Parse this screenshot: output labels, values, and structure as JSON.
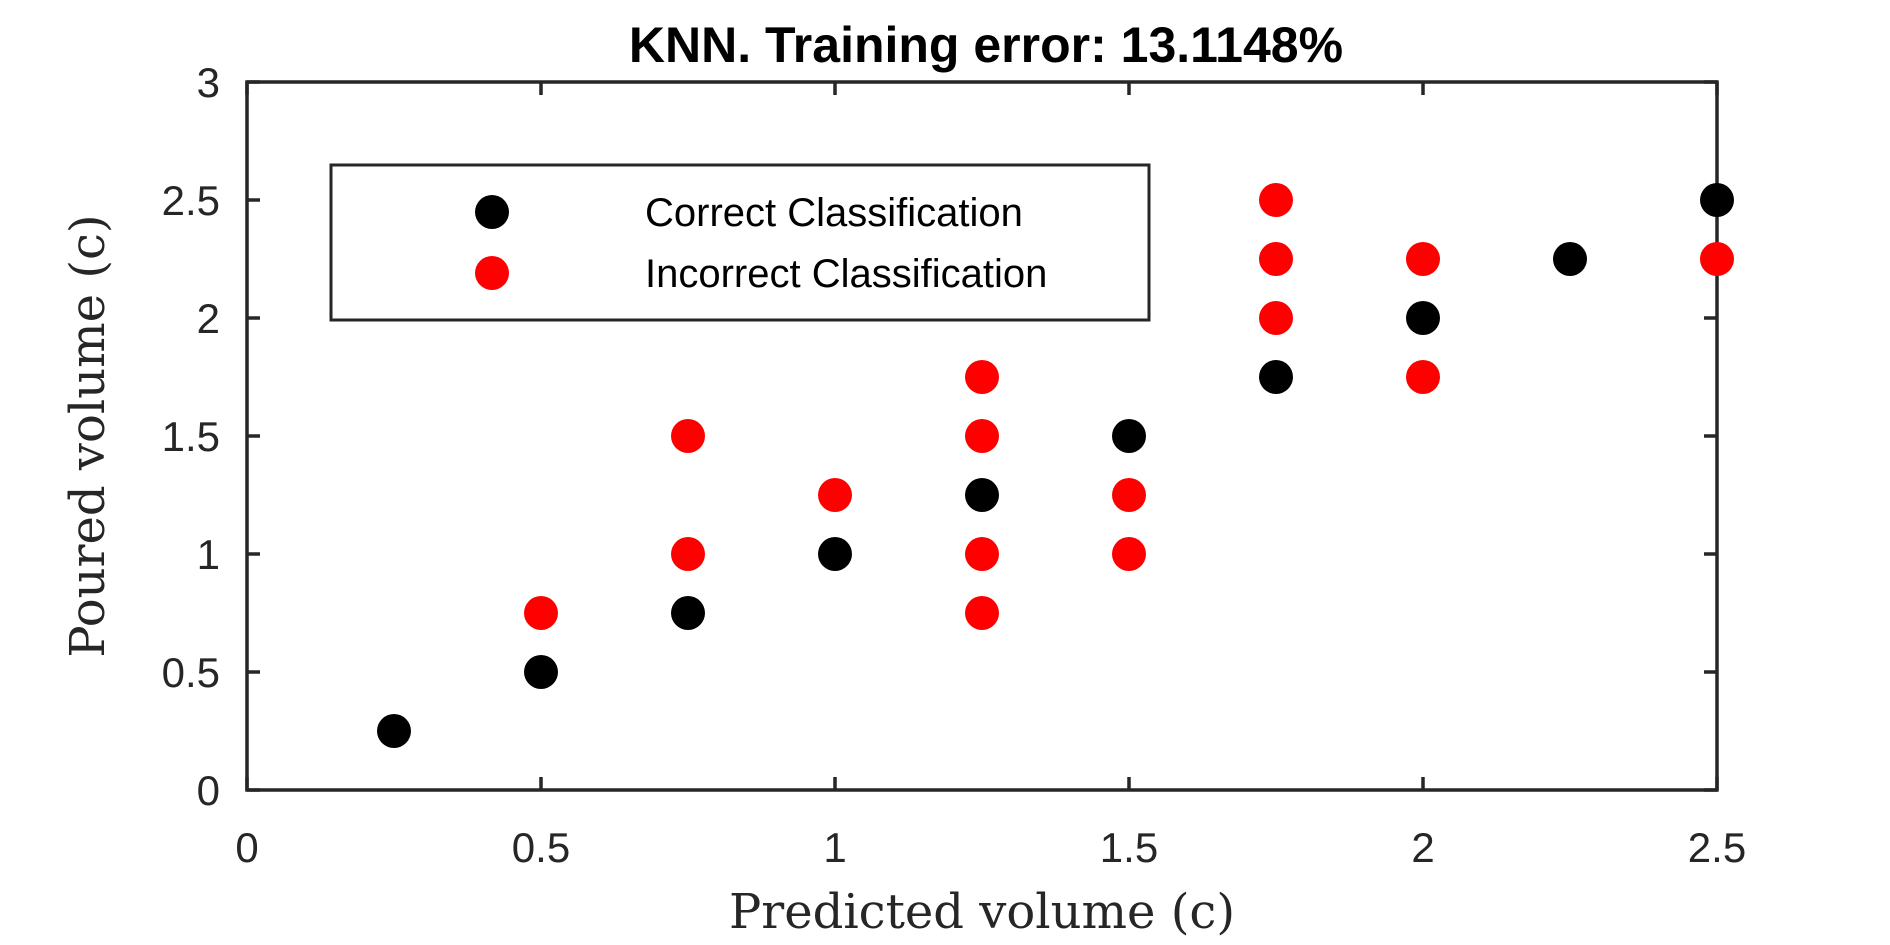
{
  "chart_data": {
    "type": "scatter",
    "title": "KNN. Training error: 13.1148%",
    "xlabel": "Predicted volume (c)",
    "ylabel": "Poured volume (c)",
    "xlim": [
      0,
      2.5
    ],
    "ylim": [
      0,
      3
    ],
    "xticks": [
      0,
      0.5,
      1,
      1.5,
      2,
      2.5
    ],
    "xtick_labels": [
      "0",
      "0.5",
      "1",
      "1.5",
      "2",
      "2.5"
    ],
    "yticks": [
      0,
      0.5,
      1,
      1.5,
      2,
      2.5,
      3
    ],
    "ytick_labels": [
      "0",
      "0.5",
      "1",
      "1.5",
      "2",
      "2.5",
      "3"
    ],
    "grid": false,
    "legend_position": "top-left",
    "series": [
      {
        "name": "Correct Classification",
        "color": "#000000",
        "points": [
          [
            0.25,
            0.25
          ],
          [
            0.5,
            0.5
          ],
          [
            0.75,
            0.75
          ],
          [
            1.0,
            1.0
          ],
          [
            1.25,
            1.25
          ],
          [
            1.5,
            1.5
          ],
          [
            1.75,
            1.75
          ],
          [
            2.0,
            2.0
          ],
          [
            2.25,
            2.25
          ],
          [
            2.5,
            2.5
          ]
        ]
      },
      {
        "name": "Incorrect Classification",
        "color": "#ff0000",
        "points": [
          [
            0.5,
            0.75
          ],
          [
            0.75,
            1.0
          ],
          [
            0.75,
            1.5
          ],
          [
            1.0,
            1.25
          ],
          [
            1.25,
            0.75
          ],
          [
            1.25,
            1.0
          ],
          [
            1.25,
            1.5
          ],
          [
            1.25,
            1.75
          ],
          [
            1.5,
            1.0
          ],
          [
            1.5,
            1.25
          ],
          [
            1.75,
            2.0
          ],
          [
            1.75,
            2.25
          ],
          [
            1.75,
            2.5
          ],
          [
            2.0,
            1.75
          ],
          [
            2.0,
            2.25
          ],
          [
            2.5,
            2.25
          ]
        ]
      }
    ]
  }
}
